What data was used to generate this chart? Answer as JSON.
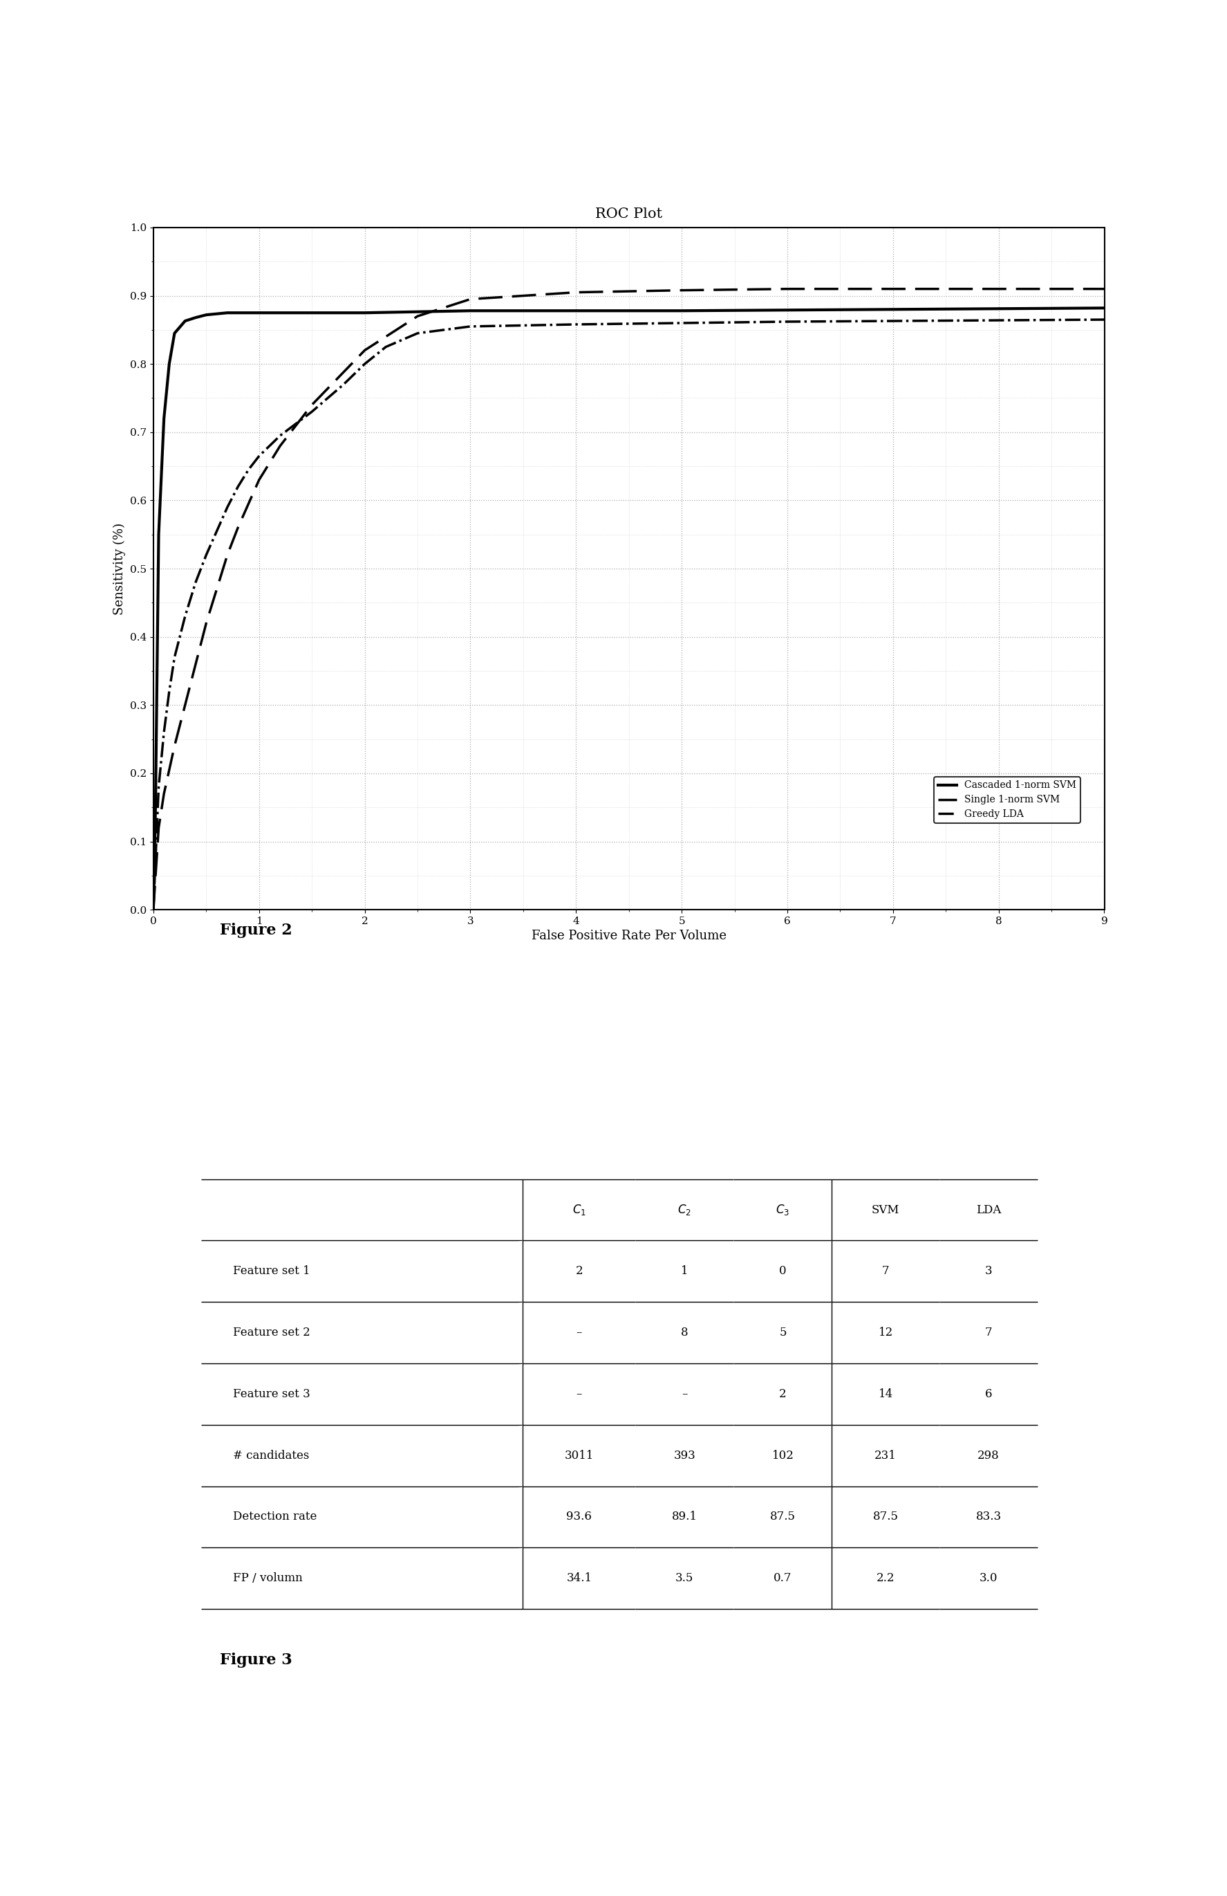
{
  "title": "ROC Plot",
  "xlabel": "False Positive Rate Per Volume",
  "ylabel": "Sensitivity (%)",
  "xlim": [
    0,
    9
  ],
  "ylim": [
    0,
    1
  ],
  "xticks": [
    0,
    1,
    2,
    3,
    4,
    5,
    6,
    7,
    8,
    9
  ],
  "yticks": [
    0,
    0.1,
    0.2,
    0.3,
    0.4,
    0.5,
    0.6,
    0.7,
    0.8,
    0.9,
    1
  ],
  "cascaded_svm_x": [
    0,
    0.02,
    0.05,
    0.1,
    0.15,
    0.2,
    0.3,
    0.4,
    0.5,
    0.7,
    1.0,
    1.5,
    2.0,
    3.0,
    4.0,
    5.0,
    6.0,
    7.0,
    8.0,
    9.0
  ],
  "cascaded_svm_y": [
    0.0,
    0.15,
    0.55,
    0.72,
    0.8,
    0.845,
    0.863,
    0.868,
    0.872,
    0.875,
    0.875,
    0.875,
    0.875,
    0.878,
    0.878,
    0.878,
    0.879,
    0.88,
    0.881,
    0.882
  ],
  "single_svm_x": [
    0,
    0.05,
    0.1,
    0.2,
    0.3,
    0.4,
    0.5,
    0.6,
    0.7,
    0.8,
    1.0,
    1.2,
    1.5,
    2.0,
    2.5,
    3.0,
    4.0,
    5.0,
    6.0,
    7.0,
    8.0,
    9.0
  ],
  "single_svm_y": [
    0.0,
    0.12,
    0.17,
    0.24,
    0.3,
    0.36,
    0.42,
    0.47,
    0.52,
    0.56,
    0.63,
    0.68,
    0.74,
    0.82,
    0.87,
    0.895,
    0.905,
    0.908,
    0.91,
    0.91,
    0.91,
    0.91
  ],
  "greedy_lda_x": [
    0,
    0.05,
    0.1,
    0.15,
    0.2,
    0.3,
    0.4,
    0.5,
    0.6,
    0.7,
    0.8,
    0.9,
    1.0,
    1.2,
    1.5,
    1.8,
    2.0,
    2.2,
    2.5,
    3.0,
    4.0,
    5.0,
    6.0,
    7.0,
    8.0,
    9.0
  ],
  "greedy_lda_y": [
    0.0,
    0.18,
    0.26,
    0.32,
    0.37,
    0.43,
    0.48,
    0.52,
    0.555,
    0.59,
    0.62,
    0.645,
    0.665,
    0.695,
    0.73,
    0.77,
    0.8,
    0.825,
    0.845,
    0.855,
    0.858,
    0.86,
    0.862,
    0.863,
    0.864,
    0.865
  ],
  "legend_labels": [
    "Cascaded 1-norm SVM",
    "Single 1-norm SVM",
    "Greedy LDA"
  ],
  "figure2_label": "Figure 2",
  "figure3_label": "Figure 3",
  "table_row_headers": [
    "Feature set 1",
    "Feature set 2",
    "Feature set 3",
    "# candidates",
    "Detection rate",
    "FP / volumn"
  ],
  "table_data": [
    [
      "2",
      "1",
      "0",
      "7",
      "3"
    ],
    [
      "–",
      "8",
      "5",
      "12",
      "7"
    ],
    [
      "–",
      "–",
      "2",
      "14",
      "6"
    ],
    [
      "3011",
      "393",
      "102",
      "231",
      "298"
    ],
    [
      "93.6",
      "89.1",
      "87.5",
      "87.5",
      "83.3"
    ],
    [
      "34.1",
      "3.5",
      "0.7",
      "2.2",
      "3.0"
    ]
  ],
  "bg_color": "#ffffff",
  "line_color": "#000000",
  "grid_color": "#999999",
  "title_fontsize": 15,
  "axis_label_fontsize": 13,
  "tick_fontsize": 11,
  "legend_fontsize": 10,
  "table_fontsize": 12
}
